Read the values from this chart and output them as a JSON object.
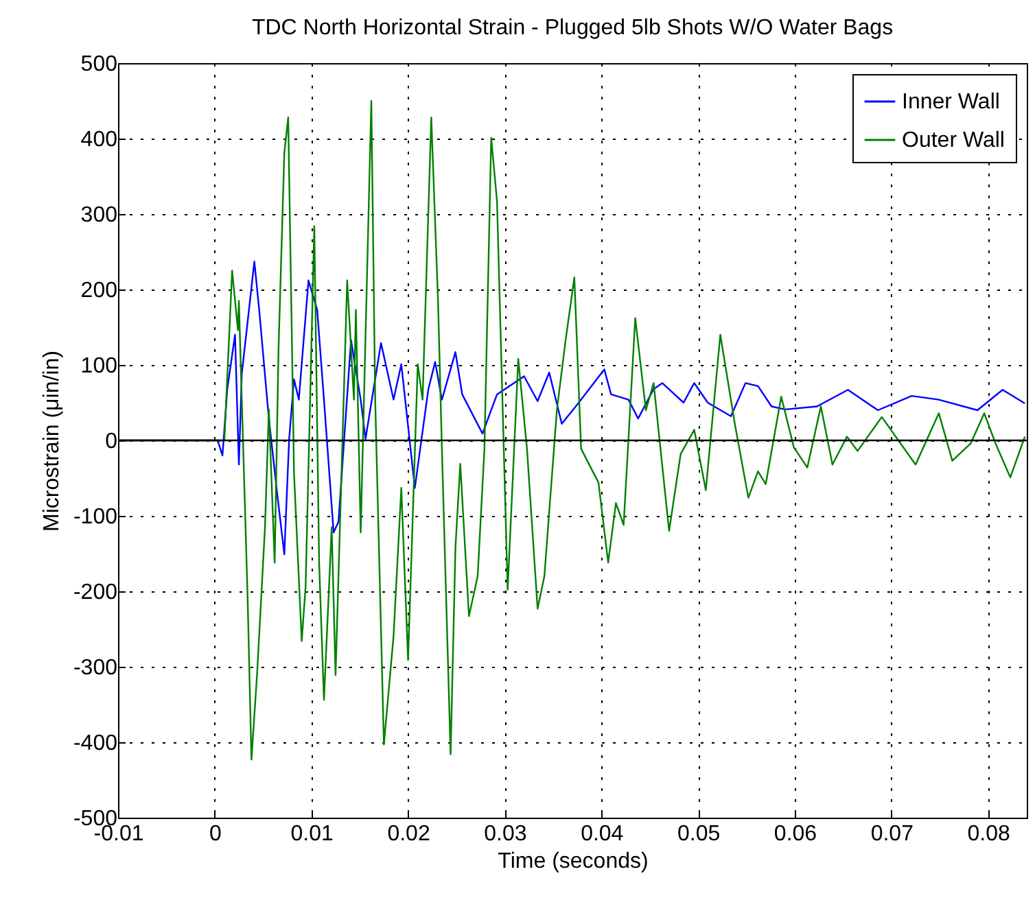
{
  "chart_data": {
    "type": "line",
    "title": "TDC North Horizontal Strain - Plugged 5lb Shots W/O Water Bags",
    "xlabel": "Time (seconds)",
    "ylabel": "Microstrain (μin/in)",
    "xlim": [
      -0.01,
      0.084
    ],
    "ylim": [
      -500,
      500
    ],
    "xticks": [
      -0.01,
      0,
      0.01,
      0.02,
      0.03,
      0.04,
      0.05,
      0.06,
      0.07,
      0.08
    ],
    "yticks": [
      -500,
      -400,
      -300,
      -200,
      -100,
      0,
      100,
      200,
      300,
      400,
      500
    ],
    "grid": true,
    "legend": "top right",
    "ref_lines": [
      {
        "axis": "y",
        "value": 0,
        "color": "#000000"
      }
    ],
    "series": [
      {
        "name": "Inner Wall",
        "color": "#0000ff",
        "x": [
          -0.01,
          0.0003,
          0.0008,
          0.0013,
          0.0021,
          0.0025,
          0.0028,
          0.0041,
          0.0046,
          0.0056,
          0.0065,
          0.0072,
          0.0077,
          0.0082,
          0.0087,
          0.0097,
          0.0106,
          0.0113,
          0.0123,
          0.0128,
          0.0141,
          0.0151,
          0.0156,
          0.0172,
          0.0185,
          0.0193,
          0.0207,
          0.0221,
          0.0228,
          0.0235,
          0.0249,
          0.0256,
          0.0277,
          0.0292,
          0.032,
          0.0334,
          0.0346,
          0.0359,
          0.0376,
          0.0403,
          0.041,
          0.0428,
          0.0438,
          0.0454,
          0.0463,
          0.0485,
          0.0496,
          0.051,
          0.0534,
          0.0549,
          0.0562,
          0.0576,
          0.059,
          0.0623,
          0.0655,
          0.0686,
          0.0721,
          0.0749,
          0.0789,
          0.0815,
          0.0838
        ],
        "values": [
          0,
          0,
          -20,
          68,
          140,
          -32,
          88,
          237,
          173,
          29,
          -75,
          -151,
          2,
          81,
          54,
          212,
          173,
          54,
          -122,
          -108,
          133,
          54,
          2,
          129,
          54,
          101,
          -63,
          68,
          104,
          54,
          117,
          61,
          9,
          61,
          85,
          52,
          90,
          22,
          49,
          94,
          61,
          54,
          29,
          68,
          76,
          50,
          76,
          50,
          32,
          76,
          72,
          45,
          41,
          45,
          67,
          40,
          59,
          54,
          40,
          67,
          49
        ]
      },
      {
        "name": "Outer Wall",
        "color": "#008000",
        "x": [
          -0.01,
          0.001,
          0.0018,
          0.0024,
          0.0025,
          0.0028,
          0.0034,
          0.0038,
          0.0044,
          0.0052,
          0.0056,
          0.0062,
          0.0066,
          0.0072,
          0.0076,
          0.008,
          0.0082,
          0.009,
          0.0094,
          0.0103,
          0.0108,
          0.0113,
          0.0121,
          0.0125,
          0.0137,
          0.0144,
          0.0146,
          0.0151,
          0.0162,
          0.0166,
          0.0175,
          0.0185,
          0.0193,
          0.02,
          0.021,
          0.0215,
          0.0224,
          0.0231,
          0.0235,
          0.0244,
          0.0249,
          0.0254,
          0.0263,
          0.0272,
          0.0279,
          0.0286,
          0.0292,
          0.0303,
          0.0314,
          0.0323,
          0.0334,
          0.0341,
          0.0354,
          0.0363,
          0.0372,
          0.0379,
          0.0397,
          0.0407,
          0.0415,
          0.0423,
          0.0435,
          0.0446,
          0.0454,
          0.047,
          0.0482,
          0.0496,
          0.0508,
          0.0523,
          0.0538,
          0.0552,
          0.0562,
          0.057,
          0.0586,
          0.0599,
          0.0613,
          0.0627,
          0.0639,
          0.0654,
          0.0665,
          0.069,
          0.0725,
          0.0749,
          0.0763,
          0.0782,
          0.0796,
          0.0808,
          0.0823,
          0.0838
        ],
        "values": [
          0,
          0,
          225,
          146,
          185,
          54,
          -207,
          -423,
          -306,
          -115,
          41,
          -162,
          121,
          381,
          428,
          121,
          -43,
          -266,
          -194,
          284,
          -162,
          -344,
          -115,
          -311,
          212,
          54,
          173,
          -122,
          450,
          54,
          -403,
          -259,
          -63,
          -291,
          101,
          54,
          428,
          185,
          -11,
          -416,
          -142,
          -31,
          -233,
          -180,
          -11,
          401,
          317,
          -198,
          108,
          -11,
          -223,
          -180,
          41,
          133,
          216,
          -11,
          -56,
          -162,
          -83,
          -112,
          162,
          40,
          76,
          -120,
          -18,
          14,
          -66,
          140,
          22,
          -76,
          -41,
          -58,
          58,
          -9,
          -36,
          45,
          -32,
          5,
          -14,
          31,
          -32,
          36,
          -27,
          -4,
          36,
          -5,
          -49,
          5
        ]
      }
    ]
  }
}
